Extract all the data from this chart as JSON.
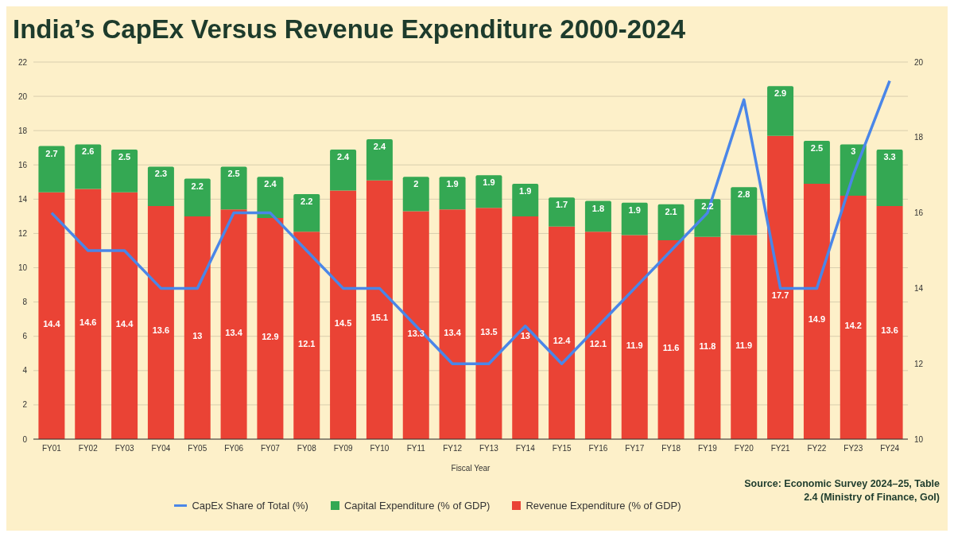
{
  "chart_data": {
    "type": "bar",
    "title": "India’s CapEx Versus Revenue Expenditure 2000-2024",
    "xlabel": "Fiscal Year",
    "categories": [
      "FY01",
      "FY02",
      "FY03",
      "FY04",
      "FY05",
      "FY06",
      "FY07",
      "FY08",
      "FY09",
      "FY10",
      "FY11",
      "FY12",
      "FY13",
      "FY14",
      "FY15",
      "FY16",
      "FY17",
      "FY18",
      "FY19",
      "FY20",
      "FY21",
      "FY22",
      "FY23",
      "FY24"
    ],
    "series": [
      {
        "name": "Revenue Expenditure (% of GDP)",
        "color": "#ea4335",
        "values": [
          14.4,
          14.6,
          14.4,
          13.6,
          13,
          13.4,
          12.9,
          12.1,
          14.5,
          15.1,
          13.3,
          13.4,
          13.5,
          13,
          12.4,
          12.1,
          11.9,
          11.6,
          11.8,
          11.9,
          17.7,
          14.9,
          14.2,
          13.6
        ],
        "value_labels": [
          "14.4",
          "14.6",
          "14.4",
          "13.6",
          "13",
          "13.4",
          "12.9",
          "12.1",
          "14.5",
          "15.1",
          "13.3",
          "13.4",
          "13.5",
          "13",
          "12.4",
          "12.1",
          "11.9",
          "11.6",
          "11.8",
          "11.9",
          "17.7",
          "14.9",
          "14.2",
          "13.6"
        ]
      },
      {
        "name": "Capital Expenditure (% of GDP)",
        "color": "#34a853",
        "values": [
          2.7,
          2.6,
          2.5,
          2.3,
          2.2,
          2.5,
          2.4,
          2.2,
          2.4,
          2.4,
          2,
          1.9,
          1.9,
          1.9,
          1.7,
          1.8,
          1.9,
          2.1,
          2.2,
          2.8,
          2.9,
          2.5,
          3,
          3.3
        ],
        "value_labels": [
          "2.7",
          "2.6",
          "2.5",
          "2.3",
          "2.2",
          "2.5",
          "2.4",
          "2.2",
          "2.4",
          "2.4",
          "2",
          "1.9",
          "1.9",
          "1.9",
          "1.7",
          "1.8",
          "1.9",
          "2.1",
          "2.2",
          "2.8",
          "2.9",
          "2.5",
          "3",
          "3.3"
        ]
      },
      {
        "name": "CapEx Share of Total (%)",
        "type": "line",
        "axis": "y2",
        "color": "#4a86e8",
        "values": [
          16,
          15,
          15,
          14,
          14,
          16,
          16,
          15,
          14,
          14,
          13,
          12,
          12,
          13,
          12,
          13,
          14,
          15,
          16,
          19,
          14,
          14,
          17,
          19.5
        ]
      }
    ],
    "stacked": true,
    "ylim": [
      0,
      22
    ],
    "yticks": [
      0,
      2,
      4,
      6,
      8,
      10,
      12,
      14,
      16,
      18,
      20,
      22
    ],
    "y2lim": [
      10,
      20
    ],
    "y2ticks": [
      10,
      12,
      14,
      16,
      18,
      20
    ],
    "grid": "y",
    "legend": "bottom",
    "marker": "none",
    "line_style": "solid",
    "annotations": [
      "Source: Economic Survey 2024–25, Table 2.4 (Ministry of Finance, GoI)"
    ]
  }
}
